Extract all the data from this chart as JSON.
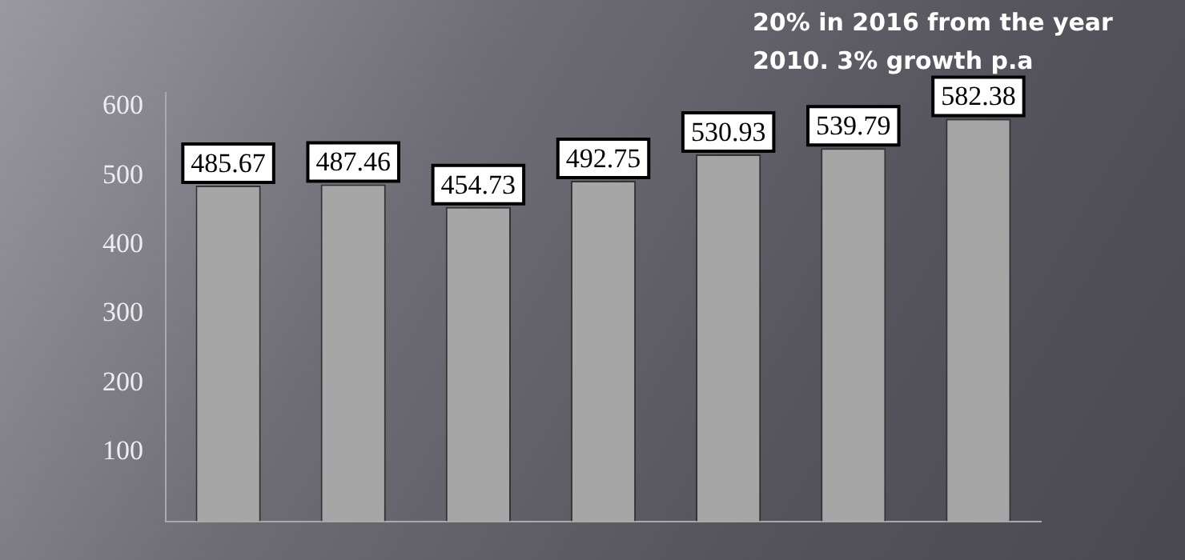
{
  "chart_data": {
    "type": "bar",
    "categories": [
      null,
      null,
      null,
      null,
      null,
      null,
      null
    ],
    "values": [
      485.67,
      487.46,
      454.73,
      492.75,
      530.93,
      539.79,
      582.38
    ],
    "color": "#a6a6a6",
    "data_labels": true,
    "ylim": [
      0,
      620
    ],
    "yticks": [
      100,
      200,
      300,
      400,
      500,
      600
    ],
    "grid": false,
    "legend": false,
    "annotations": [
      "20% in 2016 from the year 2010. 3% growth p.a"
    ]
  }
}
